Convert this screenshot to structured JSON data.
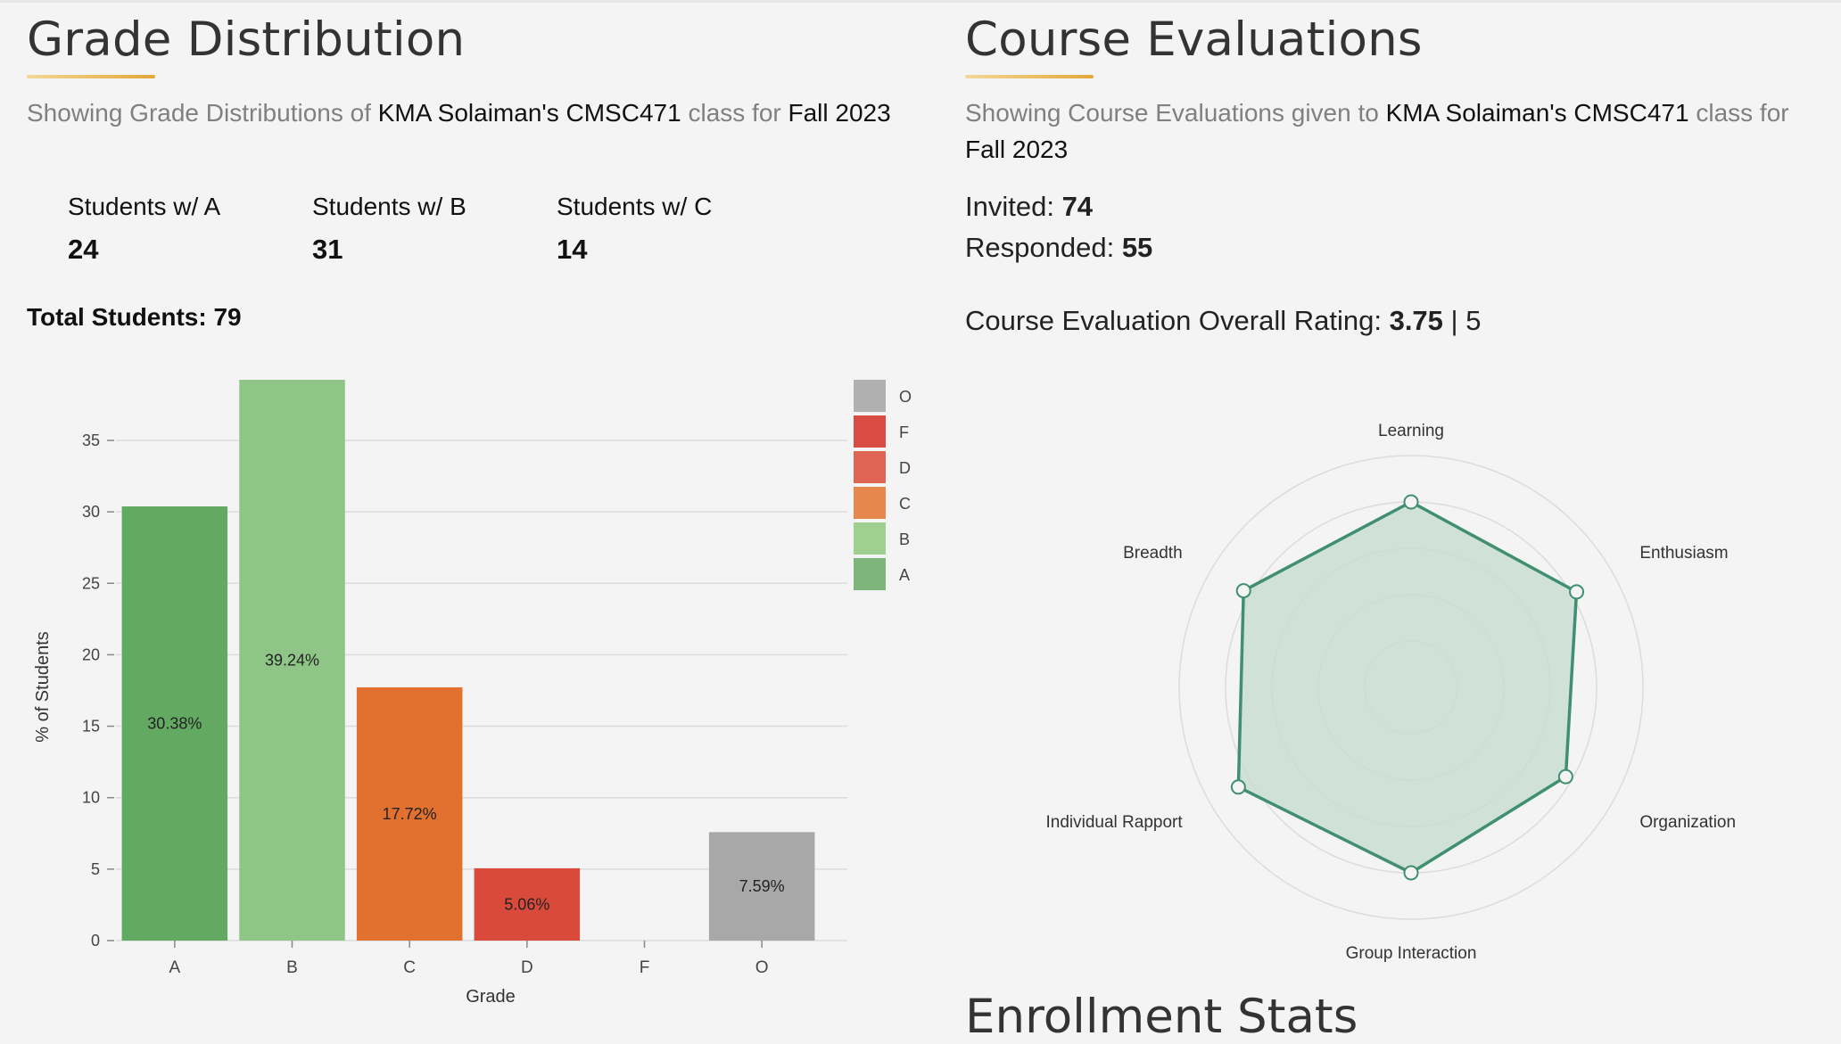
{
  "grade": {
    "title": "Grade Distribution",
    "subtitle_pre": "Showing Grade Distributions of ",
    "subtitle_class": "KMA Solaiman's CMSC471",
    "subtitle_mid": " class for ",
    "subtitle_term": "Fall 2023",
    "stats": [
      {
        "label": "Students w/ A",
        "value": "24"
      },
      {
        "label": "Students w/ B",
        "value": "31"
      },
      {
        "label": "Students w/ C",
        "value": "14"
      }
    ],
    "total_label": "Total Students: ",
    "total_value": "79"
  },
  "evaluations": {
    "title": "Course Evaluations",
    "subtitle_pre": "Showing Course Evaluations given to ",
    "subtitle_class": "KMA Solaiman's CMSC471",
    "subtitle_mid": " class for",
    "subtitle_term": "Fall 2023",
    "invited_label": "Invited: ",
    "invited_value": "74",
    "responded_label": "Responded: ",
    "responded_value": "55",
    "rating_label": "Course Evaluation Overall Rating: ",
    "rating_value": "3.75",
    "rating_sep": " | 5"
  },
  "enrollment": {
    "title": "Enrollment Stats"
  },
  "colors": {
    "A": "#62a962",
    "B": "#8fc687",
    "C": "#e2702e",
    "D": "#da4a3b",
    "F": "#da4a3b",
    "O": "#a8a8a8",
    "legend": {
      "O": "#b0b0b0",
      "F": "#d94c44",
      "D": "#e06553",
      "C": "#e6884e",
      "B": "#a0d090",
      "A": "#7db57a"
    },
    "radar": "#3f8f70",
    "radar_fill": "#c9ddd3"
  },
  "chart_data": [
    {
      "type": "bar",
      "categories": [
        "A",
        "B",
        "C",
        "D",
        "F",
        "O"
      ],
      "values": [
        30.38,
        39.24,
        17.72,
        5.06,
        0,
        7.59
      ],
      "data_labels": [
        "30.38%",
        "39.24%",
        "17.72%",
        "5.06%",
        "",
        "7.59%"
      ],
      "xlabel": "Grade",
      "ylabel": "% of Students",
      "ylim": [
        0,
        39.24
      ],
      "yticks": [
        0,
        5,
        10,
        15,
        20,
        25,
        30,
        35
      ],
      "grid": true,
      "legend_order": [
        "O",
        "F",
        "D",
        "C",
        "B",
        "A"
      ],
      "legend_placement": "top-right"
    },
    {
      "type": "radar",
      "axes": [
        "Learning",
        "Enthusiasm",
        "Organization",
        "Group Interaction",
        "Individual Rapport",
        "Breadth"
      ],
      "values": [
        4.0,
        4.12,
        3.85,
        4.0,
        4.3,
        4.17
      ],
      "rmax": 5,
      "rings": [
        1,
        2,
        3,
        4,
        5
      ]
    }
  ]
}
